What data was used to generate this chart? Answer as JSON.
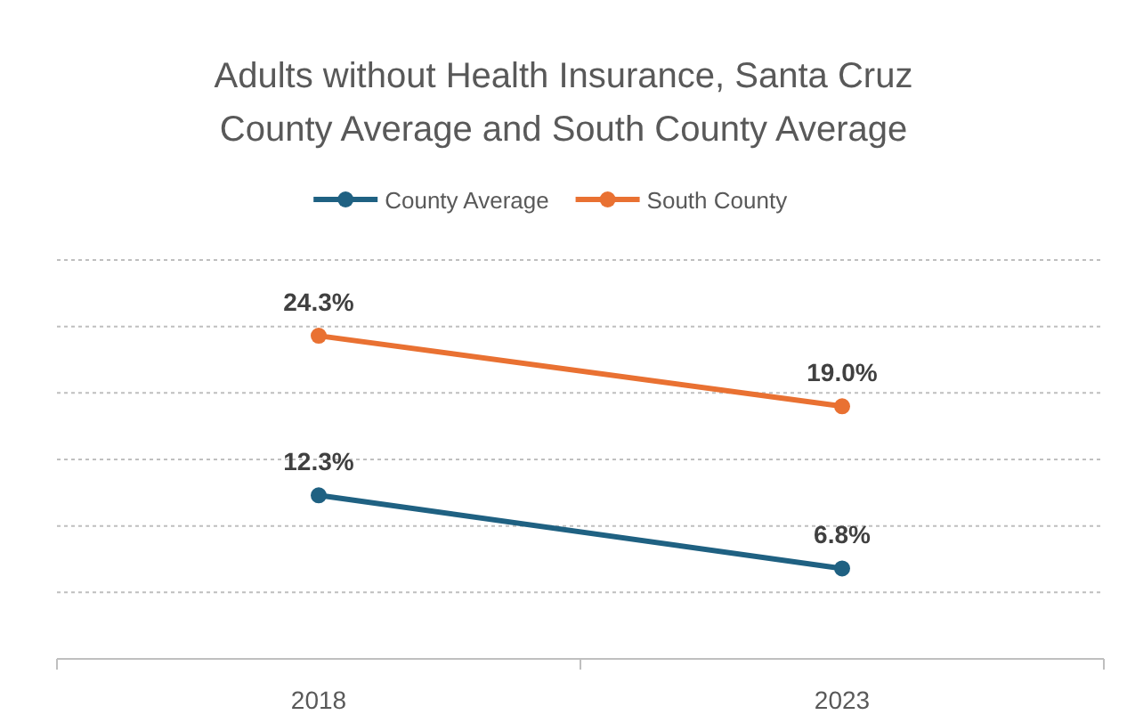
{
  "chart_data": {
    "type": "line",
    "title": "Adults without Health Insurance, Santa Cruz County Average and South County Average",
    "categories": [
      "2018",
      "2023"
    ],
    "series": [
      {
        "name": "County Average",
        "color": "#1f6182",
        "values": [
          12.3,
          6.8
        ],
        "value_labels": [
          "12.3%",
          "6.8%"
        ]
      },
      {
        "name": "South County",
        "color": "#e97132",
        "values": [
          24.3,
          19.0
        ],
        "value_labels": [
          "24.3%",
          "19.0%"
        ]
      }
    ],
    "ylim": [
      0,
      30
    ],
    "yticks": [
      {
        "value": 5,
        "label": null
      },
      {
        "value": 10,
        "label": null
      },
      {
        "value": 15,
        "label": null
      },
      {
        "value": 20,
        "label": null
      },
      {
        "value": 25,
        "label": null
      },
      {
        "value": 30,
        "label": null
      }
    ],
    "tick_labels": "x",
    "grid": "y",
    "legend": "top",
    "marker": "circle",
    "line_style": "solid"
  }
}
